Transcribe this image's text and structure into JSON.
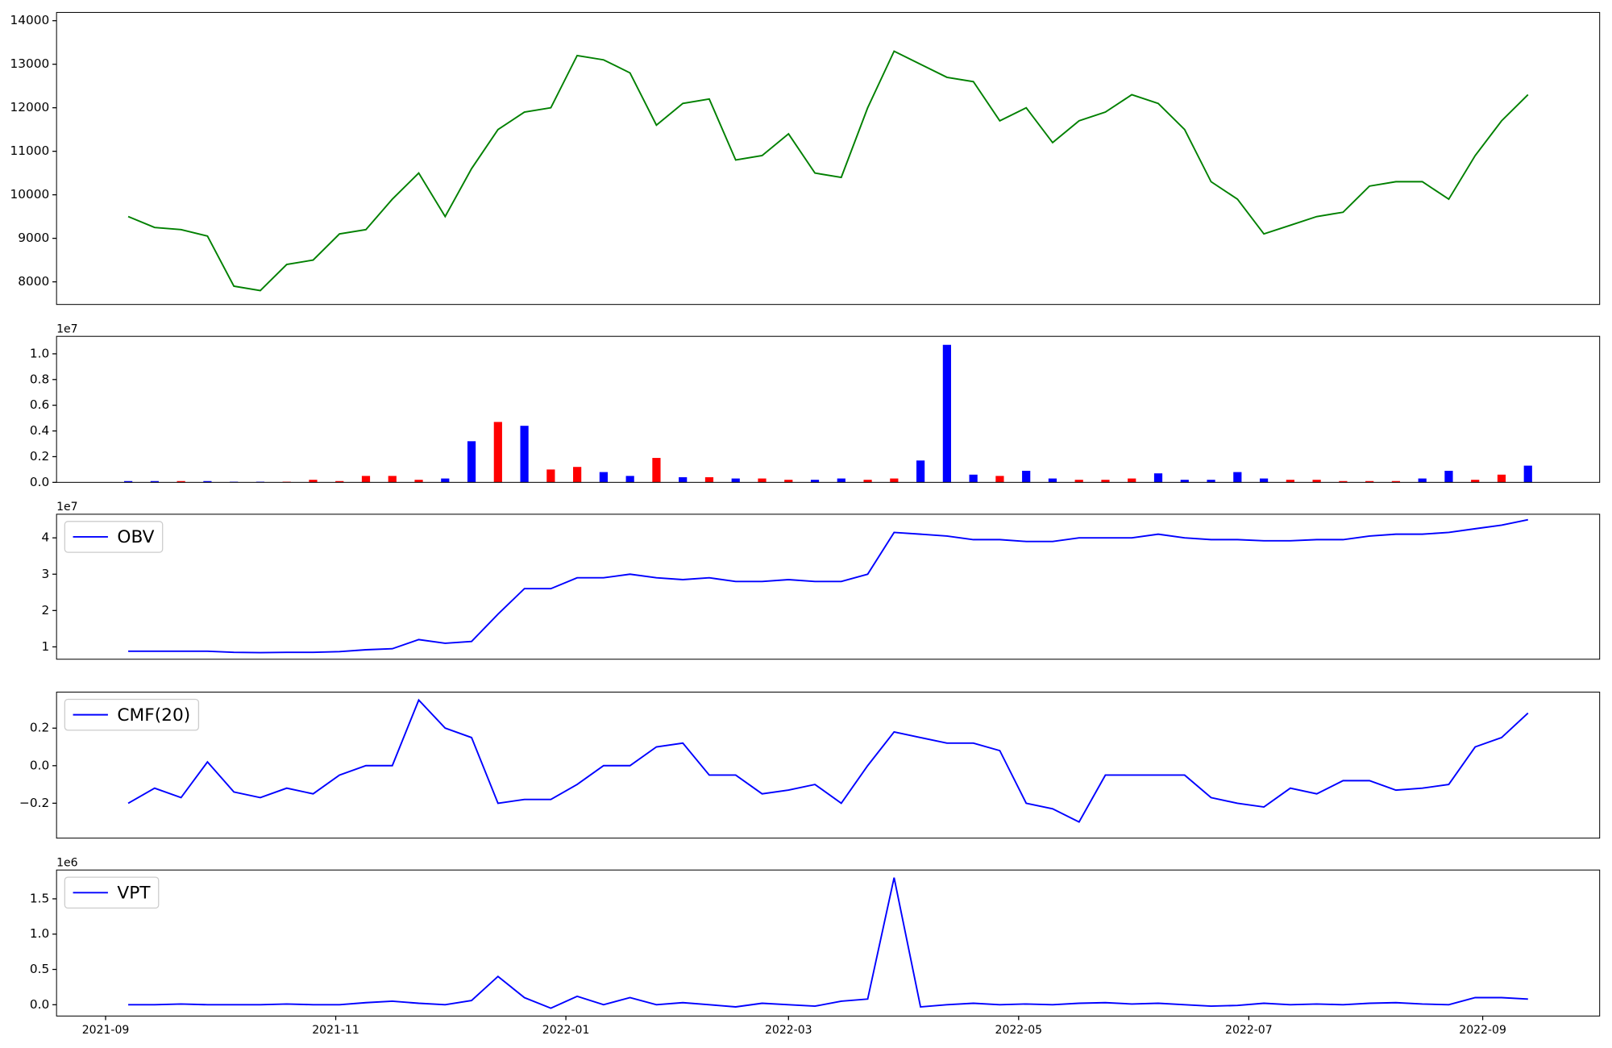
{
  "chart_data": [
    {
      "type": "line",
      "color": "#008000",
      "x": [
        "2021-09-07",
        "2021-09-14",
        "2021-09-21",
        "2021-09-28",
        "2021-10-05",
        "2021-10-12",
        "2021-10-19",
        "2021-10-26",
        "2021-11-02",
        "2021-11-09",
        "2021-11-16",
        "2021-11-23",
        "2021-11-30",
        "2021-12-07",
        "2021-12-14",
        "2021-12-21",
        "2021-12-28",
        "2022-01-04",
        "2022-01-11",
        "2022-01-18",
        "2022-01-25",
        "2022-02-01",
        "2022-02-08",
        "2022-02-15",
        "2022-02-22",
        "2022-03-01",
        "2022-03-08",
        "2022-03-15",
        "2022-03-22",
        "2022-03-29",
        "2022-04-05",
        "2022-04-12",
        "2022-04-19",
        "2022-04-26",
        "2022-05-03",
        "2022-05-10",
        "2022-05-17",
        "2022-05-24",
        "2022-05-31",
        "2022-06-07",
        "2022-06-14",
        "2022-06-21",
        "2022-06-28",
        "2022-07-05",
        "2022-07-12",
        "2022-07-19",
        "2022-07-26",
        "2022-08-02",
        "2022-08-09",
        "2022-08-16",
        "2022-08-23",
        "2022-08-30",
        "2022-09-06",
        "2022-09-13"
      ],
      "values": [
        9500,
        9250,
        9200,
        9050,
        7900,
        7800,
        8400,
        8500,
        9100,
        9200,
        9900,
        10500,
        9500,
        10600,
        11500,
        11900,
        12000,
        13200,
        13100,
        12800,
        11600,
        12100,
        12200,
        10800,
        10900,
        11400,
        10500,
        10400,
        12000,
        13300,
        13000,
        12700,
        12600,
        11700,
        12000,
        11200,
        11700,
        11900,
        12300,
        12100,
        11500,
        10300,
        9900,
        9100,
        9300,
        9500,
        9600,
        10200,
        10300,
        10300,
        9900,
        10900,
        11700,
        12300
      ],
      "xlim": [
        "2021-08-19",
        "2022-10-02"
      ],
      "ylim": [
        7480,
        14190
      ],
      "yticks": [
        8000,
        9000,
        10000,
        11000,
        12000,
        13000,
        14000
      ]
    },
    {
      "type": "bar",
      "offset": "1e7",
      "x": [
        "2021-09-07",
        "2021-09-14",
        "2021-09-21",
        "2021-09-28",
        "2021-10-05",
        "2021-10-12",
        "2021-10-19",
        "2021-10-26",
        "2021-11-02",
        "2021-11-09",
        "2021-11-16",
        "2021-11-23",
        "2021-11-30",
        "2021-12-07",
        "2021-12-14",
        "2021-12-21",
        "2021-12-28",
        "2022-01-04",
        "2022-01-11",
        "2022-01-18",
        "2022-01-25",
        "2022-02-01",
        "2022-02-08",
        "2022-02-15",
        "2022-02-22",
        "2022-03-01",
        "2022-03-08",
        "2022-03-15",
        "2022-03-22",
        "2022-03-29",
        "2022-04-05",
        "2022-04-12",
        "2022-04-19",
        "2022-04-26",
        "2022-05-03",
        "2022-05-10",
        "2022-05-17",
        "2022-05-24",
        "2022-05-31",
        "2022-06-07",
        "2022-06-14",
        "2022-06-21",
        "2022-06-28",
        "2022-07-05",
        "2022-07-12",
        "2022-07-19",
        "2022-07-26",
        "2022-08-02",
        "2022-08-09",
        "2022-08-16",
        "2022-08-23",
        "2022-08-30",
        "2022-09-06",
        "2022-09-13"
      ],
      "values": [
        100000,
        100000,
        100000,
        100000,
        50000,
        50000,
        50000,
        200000,
        100000,
        500000,
        500000,
        200000,
        300000,
        3200000,
        4700000,
        4400000,
        1000000,
        1200000,
        800000,
        500000,
        1900000,
        400000,
        400000,
        300000,
        300000,
        200000,
        200000,
        300000,
        200000,
        300000,
        1700000,
        10700000,
        600000,
        500000,
        900000,
        300000,
        200000,
        200000,
        300000,
        700000,
        200000,
        200000,
        800000,
        300000,
        200000,
        200000,
        100000,
        100000,
        100000,
        300000,
        900000,
        200000,
        600000,
        1300000
      ],
      "colors": [
        "#0000ff",
        "#0000ff",
        "#ff0000",
        "#0000ff",
        "#0000ff",
        "#0000ff",
        "#ff0000",
        "#ff0000",
        "#ff0000",
        "#ff0000",
        "#ff0000",
        "#ff0000",
        "#0000ff",
        "#0000ff",
        "#ff0000",
        "#0000ff",
        "#ff0000",
        "#ff0000",
        "#0000ff",
        "#0000ff",
        "#ff0000",
        "#0000ff",
        "#ff0000",
        "#0000ff",
        "#ff0000",
        "#ff0000",
        "#0000ff",
        "#0000ff",
        "#ff0000",
        "#ff0000",
        "#0000ff",
        "#0000ff",
        "#0000ff",
        "#ff0000",
        "#0000ff",
        "#0000ff",
        "#ff0000",
        "#ff0000",
        "#ff0000",
        "#0000ff",
        "#0000ff",
        "#0000ff",
        "#0000ff",
        "#0000ff",
        "#ff0000",
        "#ff0000",
        "#ff0000",
        "#ff0000",
        "#ff0000",
        "#0000ff",
        "#0000ff",
        "#ff0000",
        "#ff0000",
        "#0000ff"
      ],
      "xlim": [
        "2021-08-19",
        "2022-10-02"
      ],
      "ylim": [
        0,
        11360000
      ],
      "yticks": [
        {
          "value": 0,
          "label": "0.0"
        },
        {
          "value": 2000000,
          "label": "0.2"
        },
        {
          "value": 4000000,
          "label": "0.4"
        },
        {
          "value": 6000000,
          "label": "0.6"
        },
        {
          "value": 8000000,
          "label": "0.8"
        },
        {
          "value": 10000000,
          "label": "1.0"
        }
      ]
    },
    {
      "type": "line",
      "offset": "1e7",
      "legend": "upper left",
      "x": [
        "2021-09-07",
        "2021-09-14",
        "2021-09-21",
        "2021-09-28",
        "2021-10-05",
        "2021-10-12",
        "2021-10-19",
        "2021-10-26",
        "2021-11-02",
        "2021-11-09",
        "2021-11-16",
        "2021-11-23",
        "2021-11-30",
        "2021-12-07",
        "2021-12-14",
        "2021-12-21",
        "2021-12-28",
        "2022-01-04",
        "2022-01-11",
        "2022-01-18",
        "2022-01-25",
        "2022-02-01",
        "2022-02-08",
        "2022-02-15",
        "2022-02-22",
        "2022-03-01",
        "2022-03-08",
        "2022-03-15",
        "2022-03-22",
        "2022-03-29",
        "2022-04-05",
        "2022-04-12",
        "2022-04-19",
        "2022-04-26",
        "2022-05-03",
        "2022-05-10",
        "2022-05-17",
        "2022-05-24",
        "2022-05-31",
        "2022-06-07",
        "2022-06-14",
        "2022-06-21",
        "2022-06-28",
        "2022-07-05",
        "2022-07-12",
        "2022-07-19",
        "2022-07-26",
        "2022-08-02",
        "2022-08-09",
        "2022-08-16",
        "2022-08-23",
        "2022-08-30",
        "2022-09-06",
        "2022-09-13"
      ],
      "series": [
        {
          "name": "OBV",
          "color": "#0000ff",
          "values": [
            8800000,
            8800000,
            8800000,
            8800000,
            8500000,
            8400000,
            8500000,
            8500000,
            8700000,
            9200000,
            9500000,
            12000000,
            11000000,
            11500000,
            19000000,
            26000000,
            26000000,
            29000000,
            29000000,
            30000000,
            29000000,
            28500000,
            29000000,
            28000000,
            28000000,
            28500000,
            28000000,
            28000000,
            30000000,
            41500000,
            41000000,
            40500000,
            39500000,
            39500000,
            39000000,
            39000000,
            40000000,
            40000000,
            40000000,
            41000000,
            40000000,
            39500000,
            39500000,
            39200000,
            39200000,
            39500000,
            39500000,
            40500000,
            41000000,
            41000000,
            41500000,
            42500000,
            43500000,
            45000000
          ]
        }
      ],
      "xlim": [
        "2021-08-19",
        "2022-10-02"
      ],
      "ylim": [
        6600000,
        46500000
      ],
      "yticks": [
        {
          "value": 10000000,
          "label": "1"
        },
        {
          "value": 20000000,
          "label": "2"
        },
        {
          "value": 30000000,
          "label": "3"
        },
        {
          "value": 40000000,
          "label": "4"
        }
      ]
    },
    {
      "type": "line",
      "legend": "upper left",
      "x": [
        "2021-09-07",
        "2021-09-14",
        "2021-09-21",
        "2021-09-28",
        "2021-10-05",
        "2021-10-12",
        "2021-10-19",
        "2021-10-26",
        "2021-11-02",
        "2021-11-09",
        "2021-11-16",
        "2021-11-23",
        "2021-11-30",
        "2021-12-07",
        "2021-12-14",
        "2021-12-21",
        "2021-12-28",
        "2022-01-04",
        "2022-01-11",
        "2022-01-18",
        "2022-01-25",
        "2022-02-01",
        "2022-02-08",
        "2022-02-15",
        "2022-02-22",
        "2022-03-01",
        "2022-03-08",
        "2022-03-15",
        "2022-03-22",
        "2022-03-29",
        "2022-04-05",
        "2022-04-12",
        "2022-04-19",
        "2022-04-26",
        "2022-05-03",
        "2022-05-10",
        "2022-05-17",
        "2022-05-24",
        "2022-05-31",
        "2022-06-07",
        "2022-06-14",
        "2022-06-21",
        "2022-06-28",
        "2022-07-05",
        "2022-07-12",
        "2022-07-19",
        "2022-07-26",
        "2022-08-02",
        "2022-08-09",
        "2022-08-16",
        "2022-08-23",
        "2022-08-30",
        "2022-09-06",
        "2022-09-13"
      ],
      "series": [
        {
          "name": "CMF(20)",
          "color": "#0000ff",
          "values": [
            -0.2,
            -0.12,
            -0.17,
            0.02,
            -0.14,
            -0.17,
            -0.12,
            -0.15,
            -0.05,
            0.0,
            0.0,
            0.35,
            0.2,
            0.15,
            -0.2,
            -0.18,
            -0.18,
            -0.1,
            0.0,
            0.0,
            0.1,
            0.12,
            -0.05,
            -0.05,
            -0.15,
            -0.13,
            -0.1,
            -0.2,
            0.0,
            0.18,
            0.15,
            0.12,
            0.12,
            0.08,
            -0.2,
            -0.23,
            -0.3,
            -0.05,
            -0.05,
            -0.05,
            -0.05,
            -0.17,
            -0.2,
            -0.22,
            -0.12,
            -0.15,
            -0.08,
            -0.08,
            -0.13,
            -0.12,
            -0.1,
            0.1,
            0.15,
            0.28
          ]
        }
      ],
      "xlim": [
        "2021-08-19",
        "2022-10-02"
      ],
      "ylim": [
        -0.386,
        0.392
      ],
      "yticks": [
        {
          "value": -0.2,
          "label": "−0.2"
        },
        {
          "value": 0,
          "label": "0.0"
        },
        0.2
      ]
    },
    {
      "type": "line",
      "offset": "1e6",
      "legend": "upper left",
      "x": [
        "2021-09-07",
        "2021-09-14",
        "2021-09-21",
        "2021-09-28",
        "2021-10-05",
        "2021-10-12",
        "2021-10-19",
        "2021-10-26",
        "2021-11-02",
        "2021-11-09",
        "2021-11-16",
        "2021-11-23",
        "2021-11-30",
        "2021-12-07",
        "2021-12-14",
        "2021-12-21",
        "2021-12-28",
        "2022-01-04",
        "2022-01-11",
        "2022-01-18",
        "2022-01-25",
        "2022-02-01",
        "2022-02-08",
        "2022-02-15",
        "2022-02-22",
        "2022-03-01",
        "2022-03-08",
        "2022-03-15",
        "2022-03-22",
        "2022-03-29",
        "2022-04-05",
        "2022-04-12",
        "2022-04-19",
        "2022-04-26",
        "2022-05-03",
        "2022-05-10",
        "2022-05-17",
        "2022-05-24",
        "2022-05-31",
        "2022-06-07",
        "2022-06-14",
        "2022-06-21",
        "2022-06-28",
        "2022-07-05",
        "2022-07-12",
        "2022-07-19",
        "2022-07-26",
        "2022-08-02",
        "2022-08-09",
        "2022-08-16",
        "2022-08-23",
        "2022-08-30",
        "2022-09-06",
        "2022-09-13"
      ],
      "series": [
        {
          "name": "VPT",
          "color": "#0000ff",
          "values": [
            0,
            0,
            10000,
            0,
            0,
            0,
            10000,
            0,
            0,
            30000,
            50000,
            20000,
            0,
            60000,
            400000,
            100000,
            -50000,
            120000,
            0,
            100000,
            0,
            30000,
            0,
            -30000,
            20000,
            0,
            -20000,
            50000,
            80000,
            1800000,
            -30000,
            0,
            20000,
            0,
            10000,
            0,
            20000,
            30000,
            10000,
            20000,
            0,
            -20000,
            -10000,
            20000,
            0,
            10000,
            0,
            20000,
            30000,
            10000,
            0,
            100000,
            100000,
            80000
          ]
        }
      ],
      "xlim": [
        "2021-08-19",
        "2022-10-02"
      ],
      "ylim": [
        -160000,
        1908000
      ],
      "yticks": [
        {
          "value": 0,
          "label": "0.0"
        },
        {
          "value": 500000,
          "label": "0.5"
        },
        {
          "value": 1000000,
          "label": "1.0"
        },
        {
          "value": 1500000,
          "label": "1.5"
        }
      ],
      "xticks": [
        {
          "value": "2021-09-01",
          "label": "2021-09"
        },
        {
          "value": "2021-11-01",
          "label": "2021-11"
        },
        {
          "value": "2022-01-01",
          "label": "2022-01"
        },
        {
          "value": "2022-03-01",
          "label": "2022-03"
        },
        {
          "value": "2022-05-01",
          "label": "2022-05"
        },
        {
          "value": "2022-07-01",
          "label": "2022-07"
        },
        {
          "value": "2022-09-01",
          "label": "2022-09"
        }
      ]
    }
  ]
}
